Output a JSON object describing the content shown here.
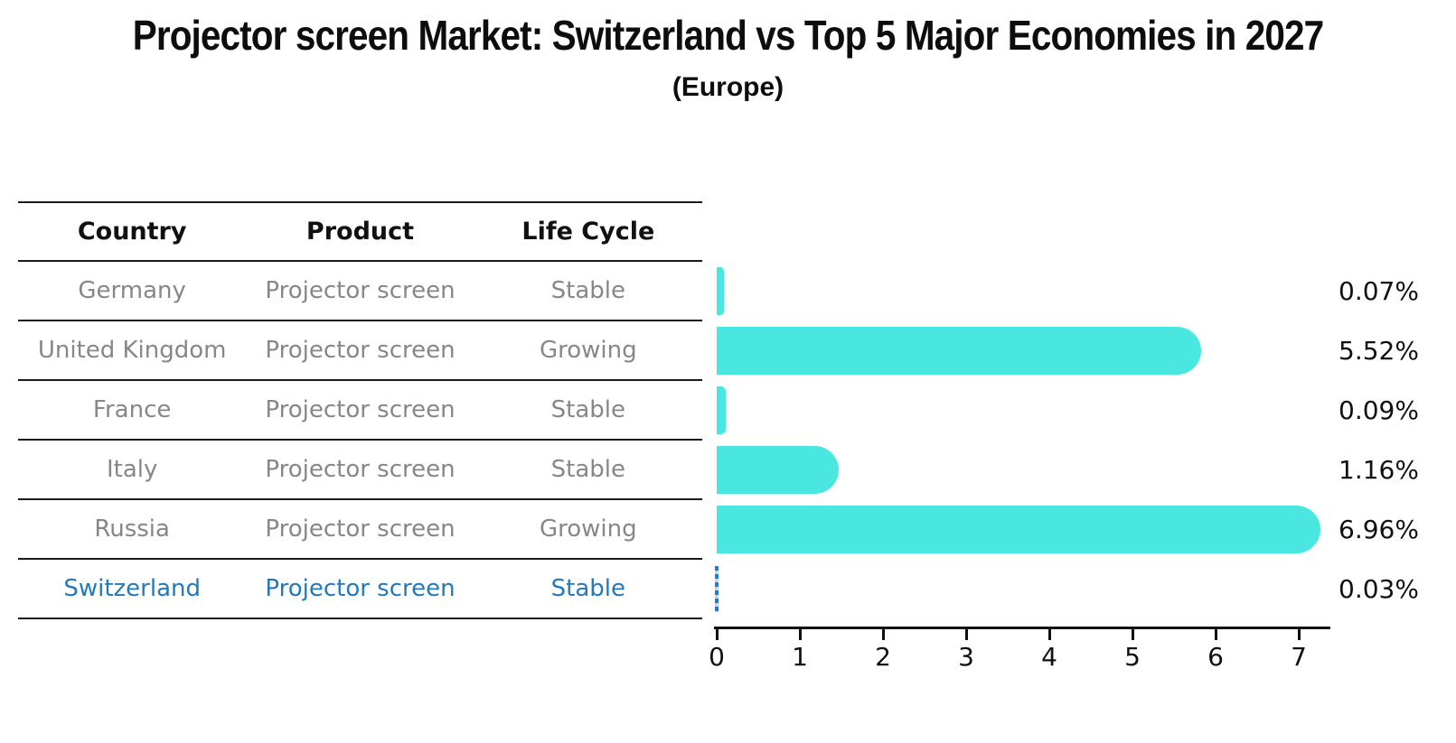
{
  "title": "Projector screen Market: Switzerland vs Top 5 Major Economies in 2027",
  "subtitle": "(Europe)",
  "table": {
    "headers": [
      "Country",
      "Product",
      "Life Cycle"
    ],
    "rows": [
      {
        "country": "Germany",
        "product": "Projector screen",
        "life_cycle": "Stable",
        "highlight": false
      },
      {
        "country": "United Kingdom",
        "product": "Projector screen",
        "life_cycle": "Growing",
        "highlight": false
      },
      {
        "country": "France",
        "product": "Projector screen",
        "life_cycle": "Stable",
        "highlight": false
      },
      {
        "country": "Italy",
        "product": "Projector screen",
        "life_cycle": "Stable",
        "highlight": false
      },
      {
        "country": "Russia",
        "product": "Projector screen",
        "life_cycle": "Growing",
        "highlight": false
      },
      {
        "country": "Switzerland",
        "product": "Projector screen",
        "life_cycle": "Stable",
        "highlight": true
      }
    ]
  },
  "chart_data": {
    "type": "bar",
    "orientation": "horizontal",
    "title": "Projector screen Market: Switzerland vs Top 5 Major Economies in 2027 (Europe)",
    "categories": [
      "Germany",
      "United Kingdom",
      "France",
      "Italy",
      "Russia",
      "Switzerland"
    ],
    "values": [
      0.07,
      5.52,
      0.09,
      1.16,
      6.96,
      0.03
    ],
    "value_labels": [
      "0.07%",
      "5.52%",
      "0.09%",
      "1.16%",
      "6.96%",
      "0.03%"
    ],
    "x_ticks": [
      "0",
      "1",
      "2",
      "3",
      "4",
      "5",
      "6",
      "7"
    ],
    "xlim": [
      0,
      7.37
    ],
    "grid": false,
    "legend": false,
    "bar_color": "#4AE7E1",
    "highlight_index": 5,
    "highlight_color": "#2979C9"
  }
}
